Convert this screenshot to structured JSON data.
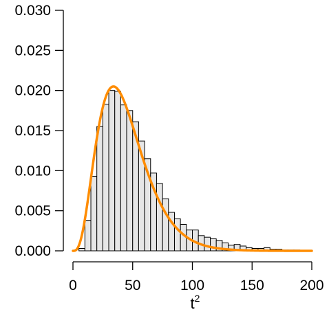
{
  "chart_data": {
    "type": "bar",
    "title": "",
    "xlabel": "t",
    "xlabel_superscript": "2",
    "ylabel": "",
    "xlim": [
      0,
      200
    ],
    "ylim": [
      0,
      0.03
    ],
    "grid": false,
    "x_ticks": [
      "0",
      "50",
      "100",
      "150",
      "200"
    ],
    "y_ticks": [
      "0.000",
      "0.005",
      "0.010",
      "0.015",
      "0.020",
      "0.025",
      "0.030"
    ],
    "histogram": {
      "bin_width": 5,
      "bin_starts": [
        0,
        5,
        10,
        15,
        20,
        25,
        30,
        35,
        40,
        45,
        50,
        55,
        60,
        65,
        70,
        75,
        80,
        85,
        90,
        95,
        100,
        105,
        110,
        115,
        120,
        125,
        130,
        135,
        140,
        145,
        150,
        155,
        160,
        165,
        170,
        175,
        180,
        185,
        190,
        195
      ],
      "density": [
        0.0,
        0.0003,
        0.0038,
        0.0093,
        0.0155,
        0.0183,
        0.02,
        0.0199,
        0.0182,
        0.0175,
        0.0161,
        0.0137,
        0.0115,
        0.0097,
        0.0084,
        0.0065,
        0.0048,
        0.004,
        0.0033,
        0.0026,
        0.0026,
        0.0019,
        0.0017,
        0.0015,
        0.0013,
        0.001,
        0.0007,
        0.0008,
        0.0006,
        0.0004,
        0.0003,
        0.0003,
        0.0004,
        0.0002,
        0.0002,
        0.0001,
        0.0001,
        0.0001,
        0.0,
        0.0
      ],
      "fill_color": "#e6e6e6",
      "stroke_color": "#000000"
    },
    "curve": {
      "description_type": "density",
      "shape": 4.2,
      "scale": 10.6,
      "x_range": [
        0,
        200
      ],
      "color": "#ff8c00"
    }
  }
}
